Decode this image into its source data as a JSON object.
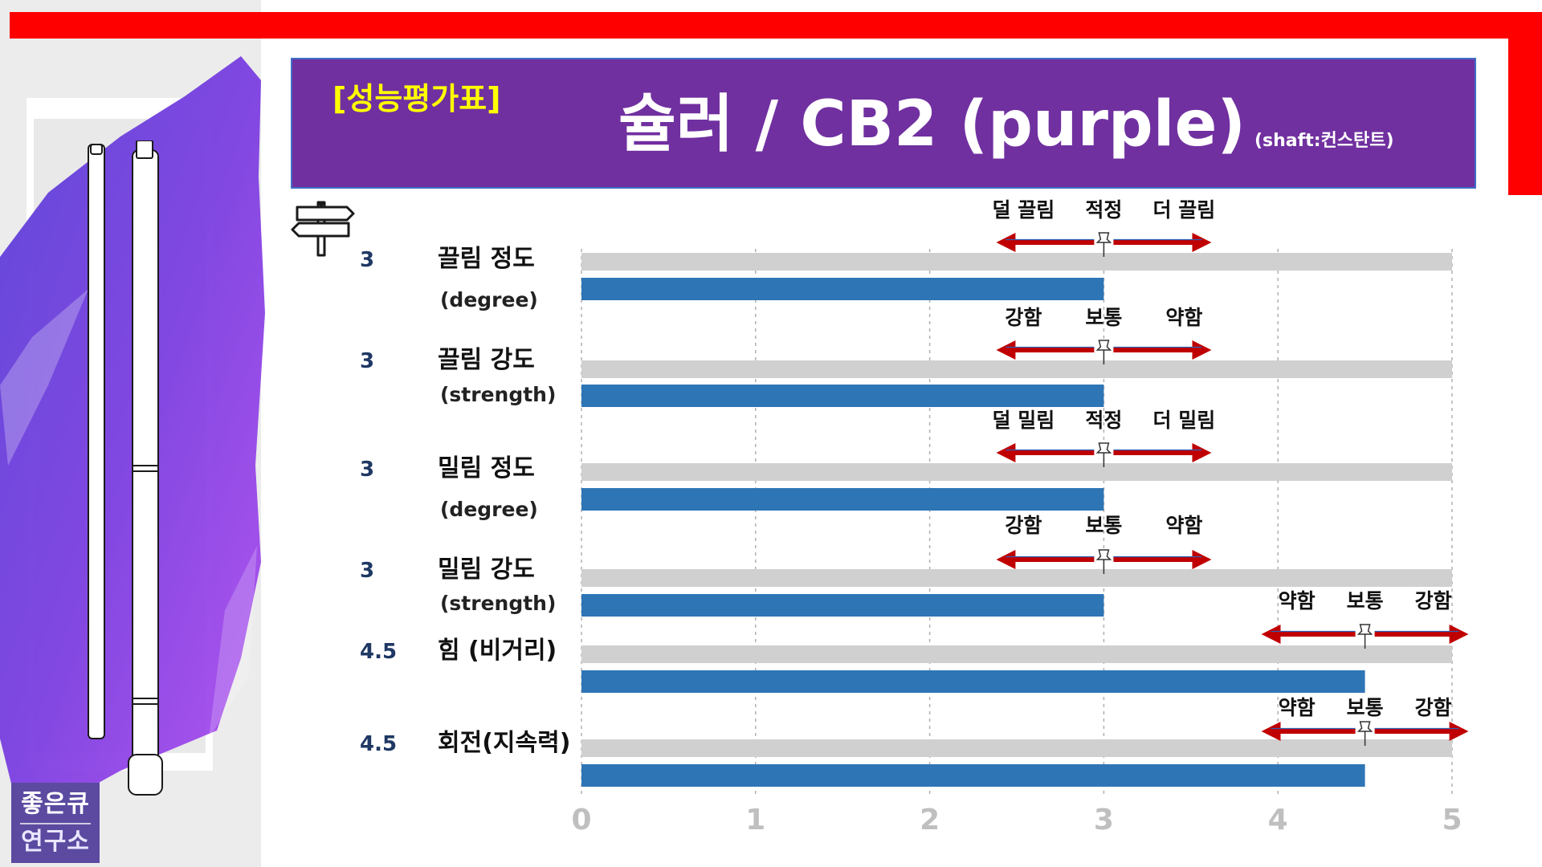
{
  "header": {
    "subtitle": "[성능평가표]",
    "title": "슐러 / CB2 (purple)",
    "shaft_note": "(shaft:컨스탄트)"
  },
  "logo": {
    "line1": "좋은큐",
    "line2": "연구소"
  },
  "colors": {
    "banner": "#7030a0",
    "bar": "#2e75b6",
    "track": "#d0d0d0",
    "arrow": "#c00000",
    "accent_red": "#ff0000",
    "value_text": "#1f3864"
  },
  "chart_data": {
    "type": "bar",
    "orientation": "horizontal",
    "xlim": [
      0,
      5
    ],
    "x_ticks": [
      "0",
      "1",
      "2",
      "3",
      "4",
      "5"
    ],
    "grid": "vertical-dashed",
    "categories": [
      {
        "value_label": "3",
        "label": "끌림 정도",
        "sublabel": "(degree)",
        "value": 3,
        "scale_left": "덜 끌림",
        "scale_mid": "적정",
        "scale_right": "더 끌림",
        "marker": 3
      },
      {
        "value_label": "3",
        "label": "끌림 강도",
        "sublabel": "(strength)",
        "value": 3,
        "scale_left": "강함",
        "scale_mid": "보통",
        "scale_right": "약함",
        "marker": 3
      },
      {
        "value_label": "3",
        "label": "밀림 정도",
        "sublabel": "(degree)",
        "value": 3,
        "scale_left": "덜 밀림",
        "scale_mid": "적정",
        "scale_right": "더 밀림",
        "marker": 3
      },
      {
        "value_label": "3",
        "label": "밀림 강도",
        "sublabel": "(strength)",
        "value": 3,
        "scale_left": "강함",
        "scale_mid": "보통",
        "scale_right": "약함",
        "marker": 3
      },
      {
        "value_label": "4.5",
        "label": "힘 (비거리)",
        "sublabel": "",
        "value": 4.5,
        "scale_left": "약함",
        "scale_mid": "보통",
        "scale_right": "강함",
        "marker": 4.5
      },
      {
        "value_label": "4.5",
        "label": "회전(지속력)",
        "sublabel": "",
        "value": 4.5,
        "scale_left": "약함",
        "scale_mid": "보통",
        "scale_right": "강함",
        "marker": 4.5
      }
    ]
  }
}
